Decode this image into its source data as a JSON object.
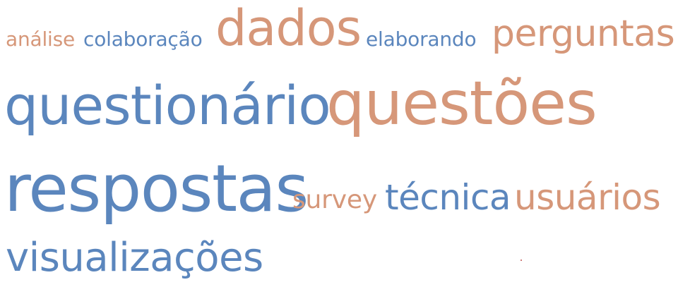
{
  "colors": {
    "blue": "#5b86bd",
    "orange": "#d69779",
    "speck": "#c0504d"
  },
  "words": [
    {
      "id": "analise",
      "text": "análise",
      "color": "orange"
    },
    {
      "id": "colaboracao",
      "text": "colaboração",
      "color": "blue"
    },
    {
      "id": "dados",
      "text": "dados",
      "color": "orange"
    },
    {
      "id": "elaborando",
      "text": "elaborando",
      "color": "blue"
    },
    {
      "id": "perguntas",
      "text": "perguntas",
      "color": "orange"
    },
    {
      "id": "questionario",
      "text": "questionário",
      "color": "blue"
    },
    {
      "id": "questoes",
      "text": "questões",
      "color": "orange"
    },
    {
      "id": "respostas",
      "text": "respostas",
      "color": "blue"
    },
    {
      "id": "survey",
      "text": "survey",
      "color": "orange"
    },
    {
      "id": "tecnica",
      "text": "técnica",
      "color": "blue"
    },
    {
      "id": "usuarios",
      "text": "usuários",
      "color": "orange"
    },
    {
      "id": "visualizacoes",
      "text": "visualizações",
      "color": "blue"
    }
  ]
}
